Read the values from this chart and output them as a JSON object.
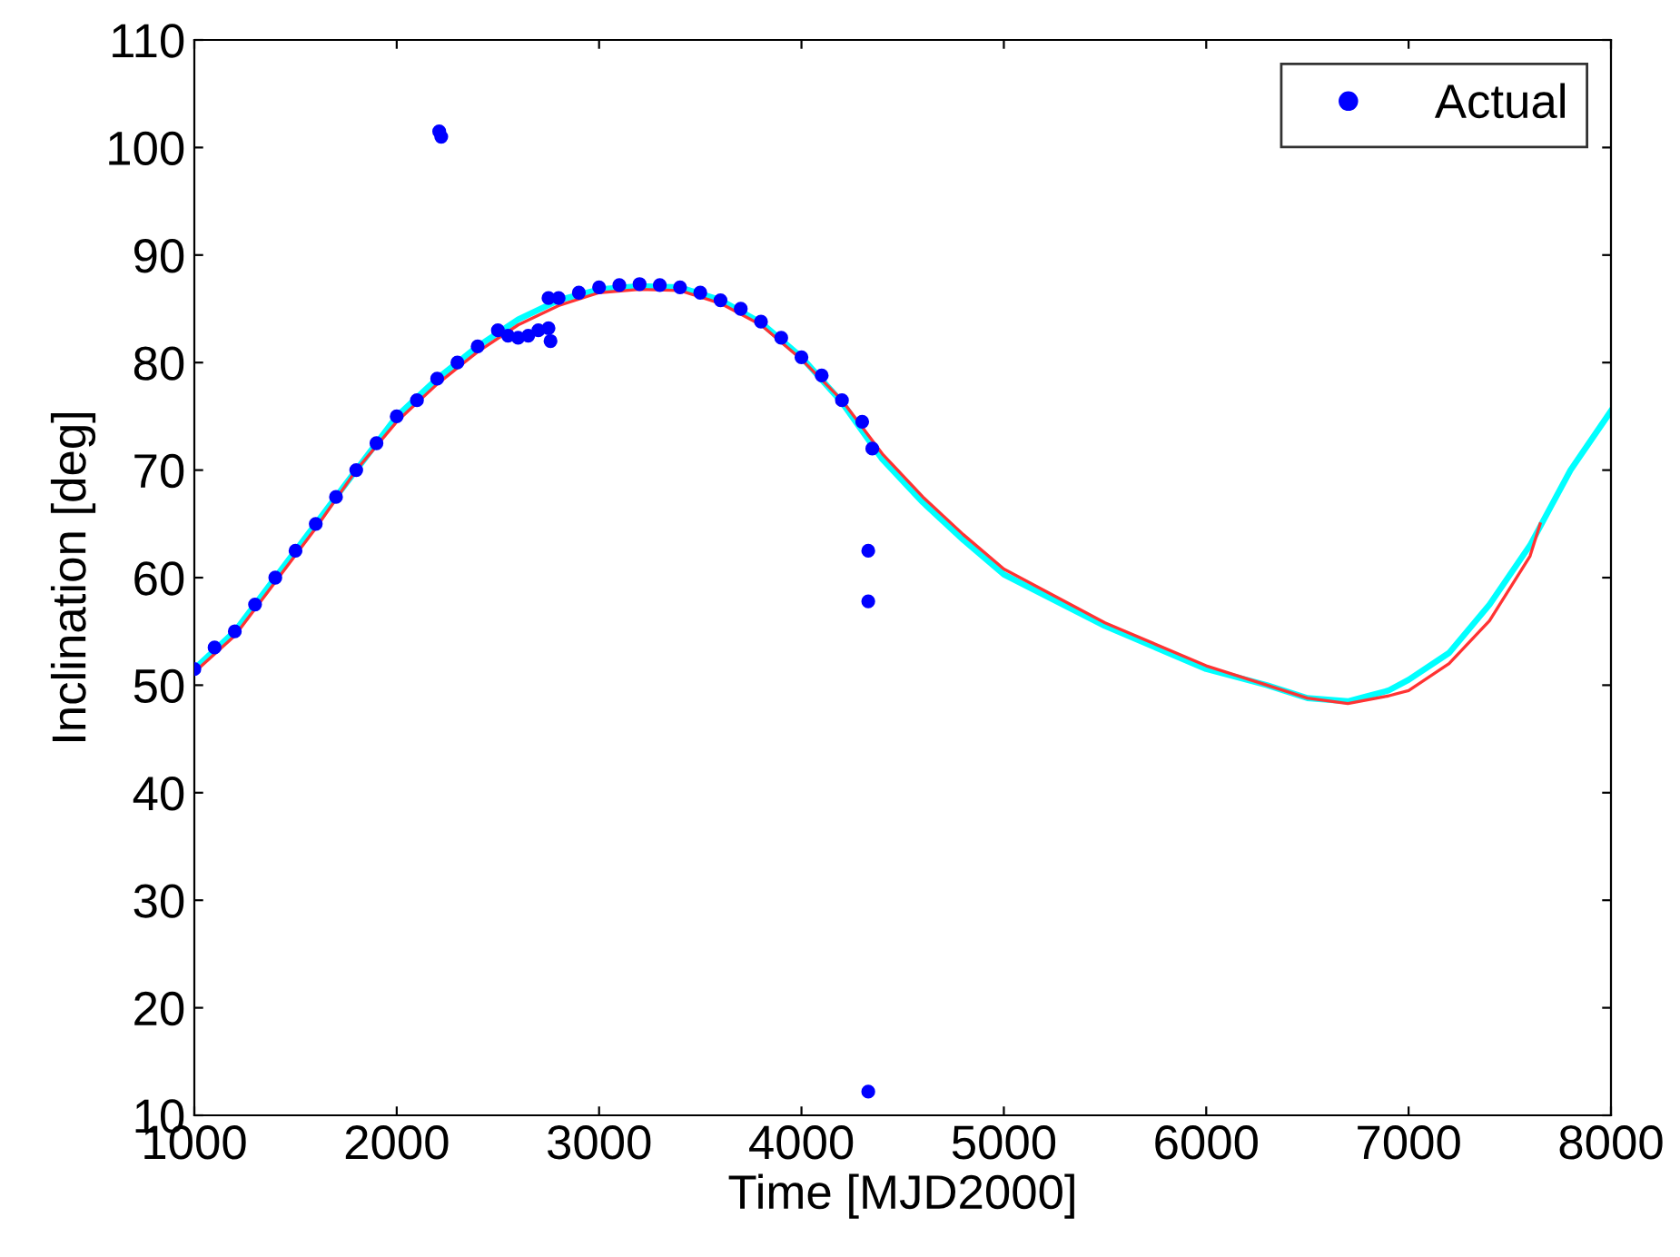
{
  "chart_data": {
    "type": "line",
    "xlabel": "Time [MJD2000]",
    "ylabel": "Inclination [deg]",
    "xlim": [
      1000,
      8000
    ],
    "ylim": [
      10,
      110
    ],
    "xticks": [
      1000,
      2000,
      3000,
      4000,
      5000,
      6000,
      7000,
      8000
    ],
    "yticks": [
      10,
      20,
      30,
      40,
      50,
      60,
      70,
      80,
      90,
      100,
      110
    ],
    "grid": false,
    "legend": "top right",
    "series": [
      {
        "name": "Actual",
        "type": "scatter",
        "marker": "circle",
        "color": "#0000ff",
        "x": [
          1000,
          1100,
          1200,
          1300,
          1400,
          1500,
          1600,
          1700,
          1800,
          1900,
          2000,
          2100,
          2200,
          2210,
          2220,
          2300,
          2400,
          2500,
          2550,
          2600,
          2650,
          2700,
          2750,
          2750,
          2760,
          2800,
          2900,
          3000,
          3100,
          3200,
          3300,
          3400,
          3500,
          3600,
          3700,
          3800,
          3900,
          4000,
          4100,
          4200,
          4300,
          4330,
          4330,
          4330,
          4350
        ],
        "values": [
          51.5,
          53.5,
          55,
          57.5,
          60,
          62.5,
          65,
          67.5,
          70,
          72.5,
          75,
          76.5,
          78.5,
          101.5,
          101,
          80,
          81.5,
          83,
          82.5,
          82.3,
          82.5,
          83,
          83.2,
          86,
          82,
          86,
          86.5,
          87,
          87.2,
          87.3,
          87.2,
          87,
          86.5,
          85.8,
          85,
          83.8,
          82.3,
          80.5,
          78.8,
          76.5,
          74.5,
          62.5,
          57.8,
          12.2,
          72
        ]
      },
      {
        "color": "#ff3333",
        "x": [
          1000,
          1200,
          1400,
          1600,
          1800,
          2000,
          2200,
          2400,
          2600,
          2800,
          3000,
          3200,
          3400,
          3600,
          3800,
          4000,
          4200,
          4400,
          4600,
          4800,
          5000,
          5500,
          6000,
          6300,
          6500,
          6700,
          6900,
          7000,
          7200,
          7400,
          7600,
          7650
        ],
        "values": [
          51.2,
          54.6,
          59.6,
          64.6,
          70,
          74.5,
          78,
          81,
          83.5,
          85.3,
          86.5,
          86.8,
          86.7,
          85.5,
          83.5,
          80.3,
          76.5,
          71.5,
          67.5,
          64,
          60.8,
          55.8,
          51.8,
          50,
          48.8,
          48.3,
          49,
          49.5,
          52,
          56,
          62,
          65
        ]
      },
      {
        "color": "#00ffff",
        "x": [
          1000,
          1200,
          1400,
          1600,
          1800,
          2000,
          2200,
          2400,
          2600,
          2800,
          3000,
          3200,
          3400,
          3600,
          3800,
          4000,
          4200,
          4400,
          4600,
          4800,
          5000,
          5500,
          6000,
          6300,
          6500,
          6700,
          6900,
          7000,
          7200,
          7400,
          7600,
          7700,
          7800,
          8000
        ],
        "values": [
          51.5,
          55,
          60,
          65,
          70,
          75,
          78.5,
          81.5,
          84,
          85.8,
          86.8,
          87.1,
          87,
          85.8,
          83.7,
          80.5,
          76.3,
          71,
          67,
          63.5,
          60.3,
          55.5,
          51.5,
          50,
          48.8,
          48.5,
          49.5,
          50.5,
          53,
          57.5,
          63,
          66.5,
          70,
          75.5
        ]
      }
    ]
  }
}
